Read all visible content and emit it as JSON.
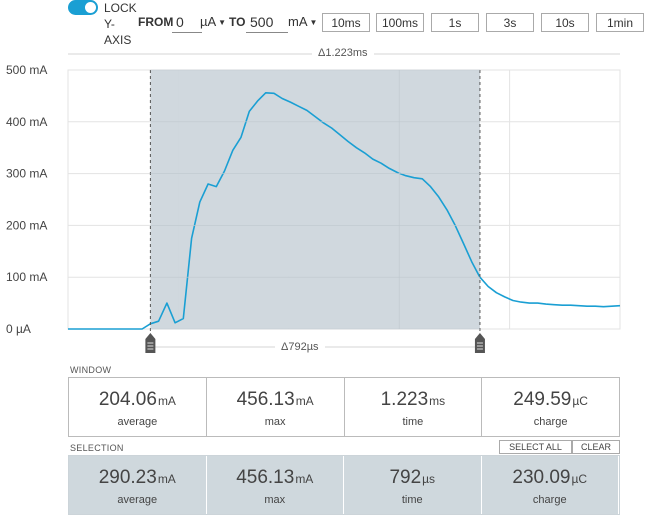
{
  "toolbar": {
    "lock_label": "LOCK Y-AXIS",
    "from_label": "FROM",
    "to_label": "TO",
    "from_value": "0",
    "from_unit": "µA",
    "to_value": "500",
    "to_unit": "mA",
    "ranges": [
      "10ms",
      "100ms",
      "1s",
      "3s",
      "10s",
      "1min"
    ]
  },
  "chart": {
    "window_delta": "Δ1.223ms",
    "selection_delta": "Δ792µs",
    "y_tick_labels": [
      "500 mA",
      "400 mA",
      "300 mA",
      "200 mA",
      "100 mA",
      "0 µA"
    ]
  },
  "chart_data": {
    "type": "line",
    "title": "",
    "xlabel": "",
    "ylabel": "",
    "ylim": [
      0,
      500
    ],
    "y_unit": "mA",
    "grid": true,
    "line_color": "#1a9fd3",
    "selection_fill": "#cdd6dc",
    "series": [
      {
        "values": [
          0,
          0,
          0,
          0,
          0,
          0,
          0,
          0,
          0,
          0,
          10,
          15,
          50,
          12,
          20,
          175,
          245,
          280,
          275,
          305,
          345,
          370,
          420,
          440,
          456,
          455,
          445,
          438,
          430,
          422,
          410,
          398,
          388,
          375,
          362,
          350,
          340,
          328,
          320,
          310,
          302,
          296,
          292,
          290,
          275,
          255,
          230,
          200,
          165,
          130,
          100,
          82,
          70,
          62,
          55,
          52,
          50,
          50,
          48,
          47,
          46,
          46,
          45,
          44,
          44,
          43,
          44,
          45
        ]
      }
    ]
  },
  "window": {
    "title": "WINDOW",
    "stats": [
      {
        "value": "204.06",
        "unit": "mA",
        "label": "average"
      },
      {
        "value": "456.13",
        "unit": "mA",
        "label": "max"
      },
      {
        "value": "1.223",
        "unit": "ms",
        "label": "time"
      },
      {
        "value": "249.59",
        "unit": "µC",
        "label": "charge"
      }
    ]
  },
  "selection": {
    "title": "SELECTION",
    "select_all_label": "SELECT ALL",
    "clear_label": "CLEAR",
    "stats": [
      {
        "value": "290.23",
        "unit": "mA",
        "label": "average"
      },
      {
        "value": "456.13",
        "unit": "mA",
        "label": "max"
      },
      {
        "value": "792",
        "unit": "µs",
        "label": "time"
      },
      {
        "value": "230.09",
        "unit": "µC",
        "label": "charge"
      }
    ]
  }
}
